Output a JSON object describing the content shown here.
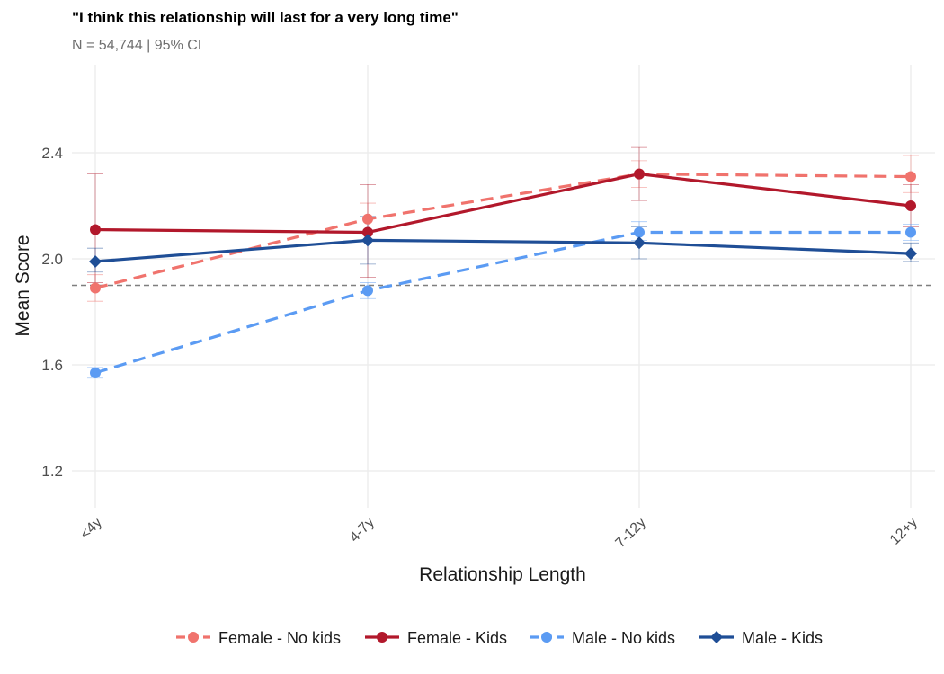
{
  "chart_data": {
    "type": "line",
    "title": "\"I think this relationship will last for a very long time\"",
    "subtitle": "N = 54,744 | 95% CI",
    "xlabel": "Relationship Length",
    "ylabel": "Mean Score",
    "categories": [
      "<4y",
      "4-7y",
      "7-12y",
      "12+y"
    ],
    "ylim": [
      1.08,
      2.78
    ],
    "yticks": [
      "1.2",
      "1.6",
      "2.0",
      "2.4"
    ],
    "reference_line": 1.9,
    "grid": true,
    "legend_position": "bottom",
    "series": [
      {
        "name": "Female - No kids",
        "color": "#f0736d",
        "style": "dashed",
        "marker": "circle",
        "values": [
          1.89,
          2.15,
          2.32,
          2.31
        ],
        "ci": [
          [
            1.84,
            1.94
          ],
          [
            2.09,
            2.21
          ],
          [
            2.27,
            2.37
          ],
          [
            2.25,
            2.39
          ]
        ]
      },
      {
        "name": "Female - Kids",
        "color": "#b2182b",
        "style": "solid",
        "marker": "circle",
        "values": [
          2.11,
          2.1,
          2.32,
          2.2
        ],
        "ci": [
          [
            1.91,
            2.32
          ],
          [
            1.93,
            2.28
          ],
          [
            2.22,
            2.42
          ],
          [
            2.12,
            2.28
          ]
        ]
      },
      {
        "name": "Male - No kids",
        "color": "#5b9bf3",
        "style": "dashed",
        "marker": "circle",
        "values": [
          1.57,
          1.88,
          2.1,
          2.1
        ],
        "ci": [
          [
            1.55,
            1.59
          ],
          [
            1.85,
            1.91
          ],
          [
            2.07,
            2.14
          ],
          [
            2.07,
            2.13
          ]
        ]
      },
      {
        "name": "Male - Kids",
        "color": "#1f4e96",
        "style": "solid",
        "marker": "diamond",
        "values": [
          1.99,
          2.07,
          2.06,
          2.02
        ],
        "ci": [
          [
            1.95,
            2.04
          ],
          [
            1.98,
            2.16
          ],
          [
            2.0,
            2.12
          ],
          [
            1.99,
            2.06
          ]
        ]
      }
    ]
  }
}
